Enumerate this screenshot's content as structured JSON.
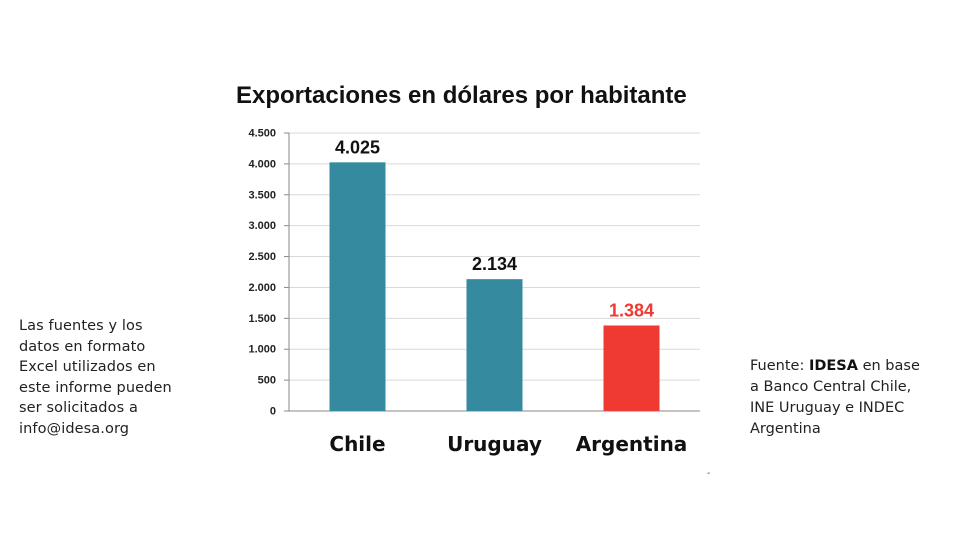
{
  "chart_data": {
    "type": "bar",
    "title": "Exportaciones en dólares por habitante",
    "categories": [
      "Chile",
      "Uruguay",
      "Argentina"
    ],
    "values": [
      4025,
      2134,
      1384
    ],
    "value_labels": [
      "4.025",
      "2.134",
      "1.384"
    ],
    "bar_colors": [
      "#358aa0",
      "#358aa0",
      "#ee3a33"
    ],
    "value_label_colors": [
      "#111111",
      "#111111",
      "#ee3a33"
    ],
    "ylim": [
      0,
      4500
    ],
    "yticks": [
      0,
      500,
      1000,
      1500,
      2000,
      2500,
      3000,
      3500,
      4000,
      4500
    ],
    "ytick_labels": [
      "0",
      "500",
      "1.000",
      "1.500",
      "2.000",
      "2.500",
      "3.000",
      "3.500",
      "4.000",
      "4.500"
    ],
    "xlabel": "",
    "ylabel": "",
    "grid": true
  },
  "side_note": {
    "lines": [
      "Las fuentes y los",
      "datos en formato",
      "Excel utilizados en",
      "este informe pueden",
      "ser solicitados a",
      "info@idesa.org"
    ]
  },
  "source_note": {
    "prefix": "Fuente: ",
    "brand": "IDESA",
    "rest_first_line": " en base",
    "lines": [
      "a Banco Central Chile,",
      "INE Uruguay e INDEC",
      "Argentina"
    ]
  },
  "mark": "-"
}
